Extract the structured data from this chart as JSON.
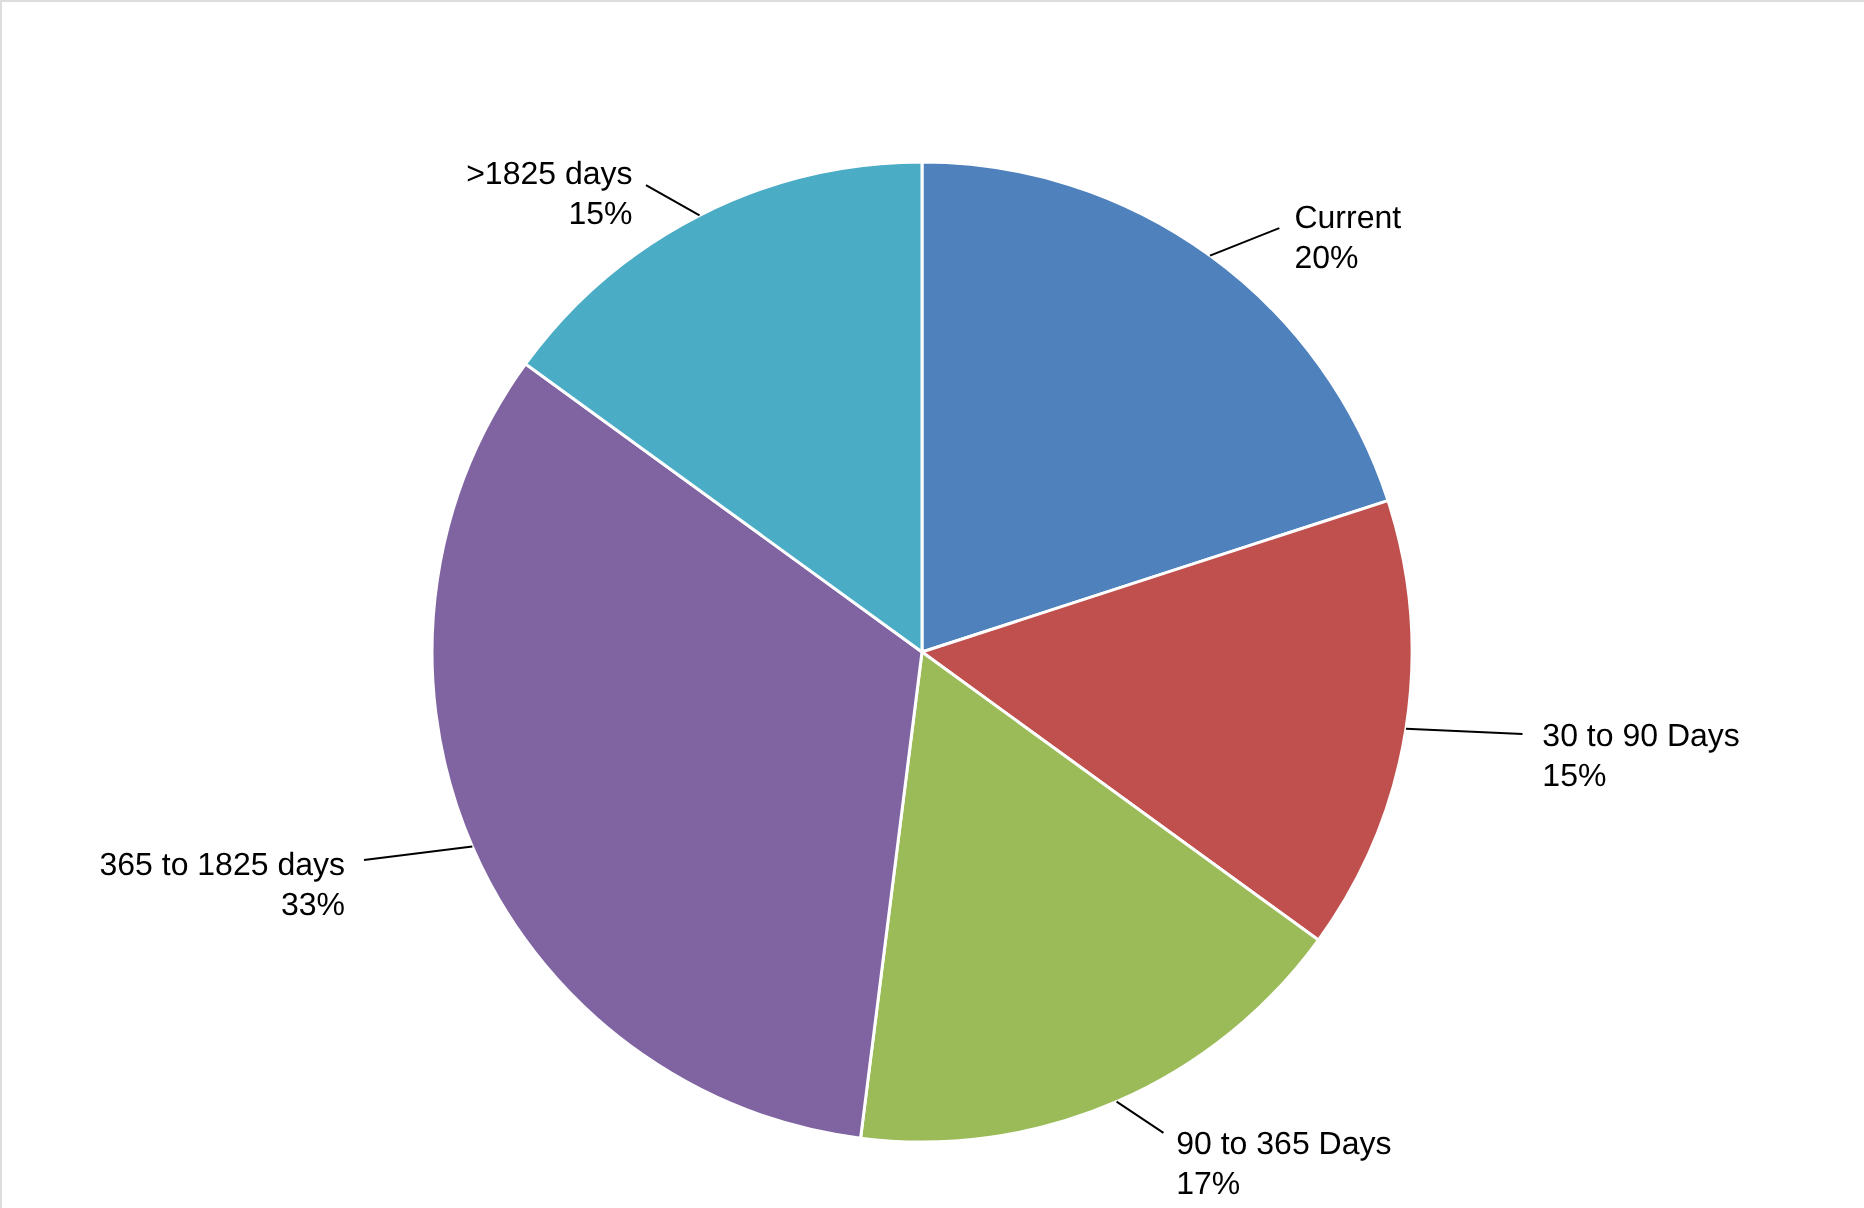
{
  "chart_data": {
    "type": "pie",
    "categories": [
      "Current",
      "30 to 90 Days",
      "90 to 365 Days",
      "365 to 1825 days",
      ">1825 days"
    ],
    "values": [
      20,
      15,
      17,
      33,
      15
    ],
    "value_labels": [
      "20%",
      "15%",
      "17%",
      "33%",
      "15%"
    ],
    "colors": [
      "#4f81bd",
      "#c0504d",
      "#9bbb59",
      "#8064a2",
      "#4bacc6"
    ]
  }
}
